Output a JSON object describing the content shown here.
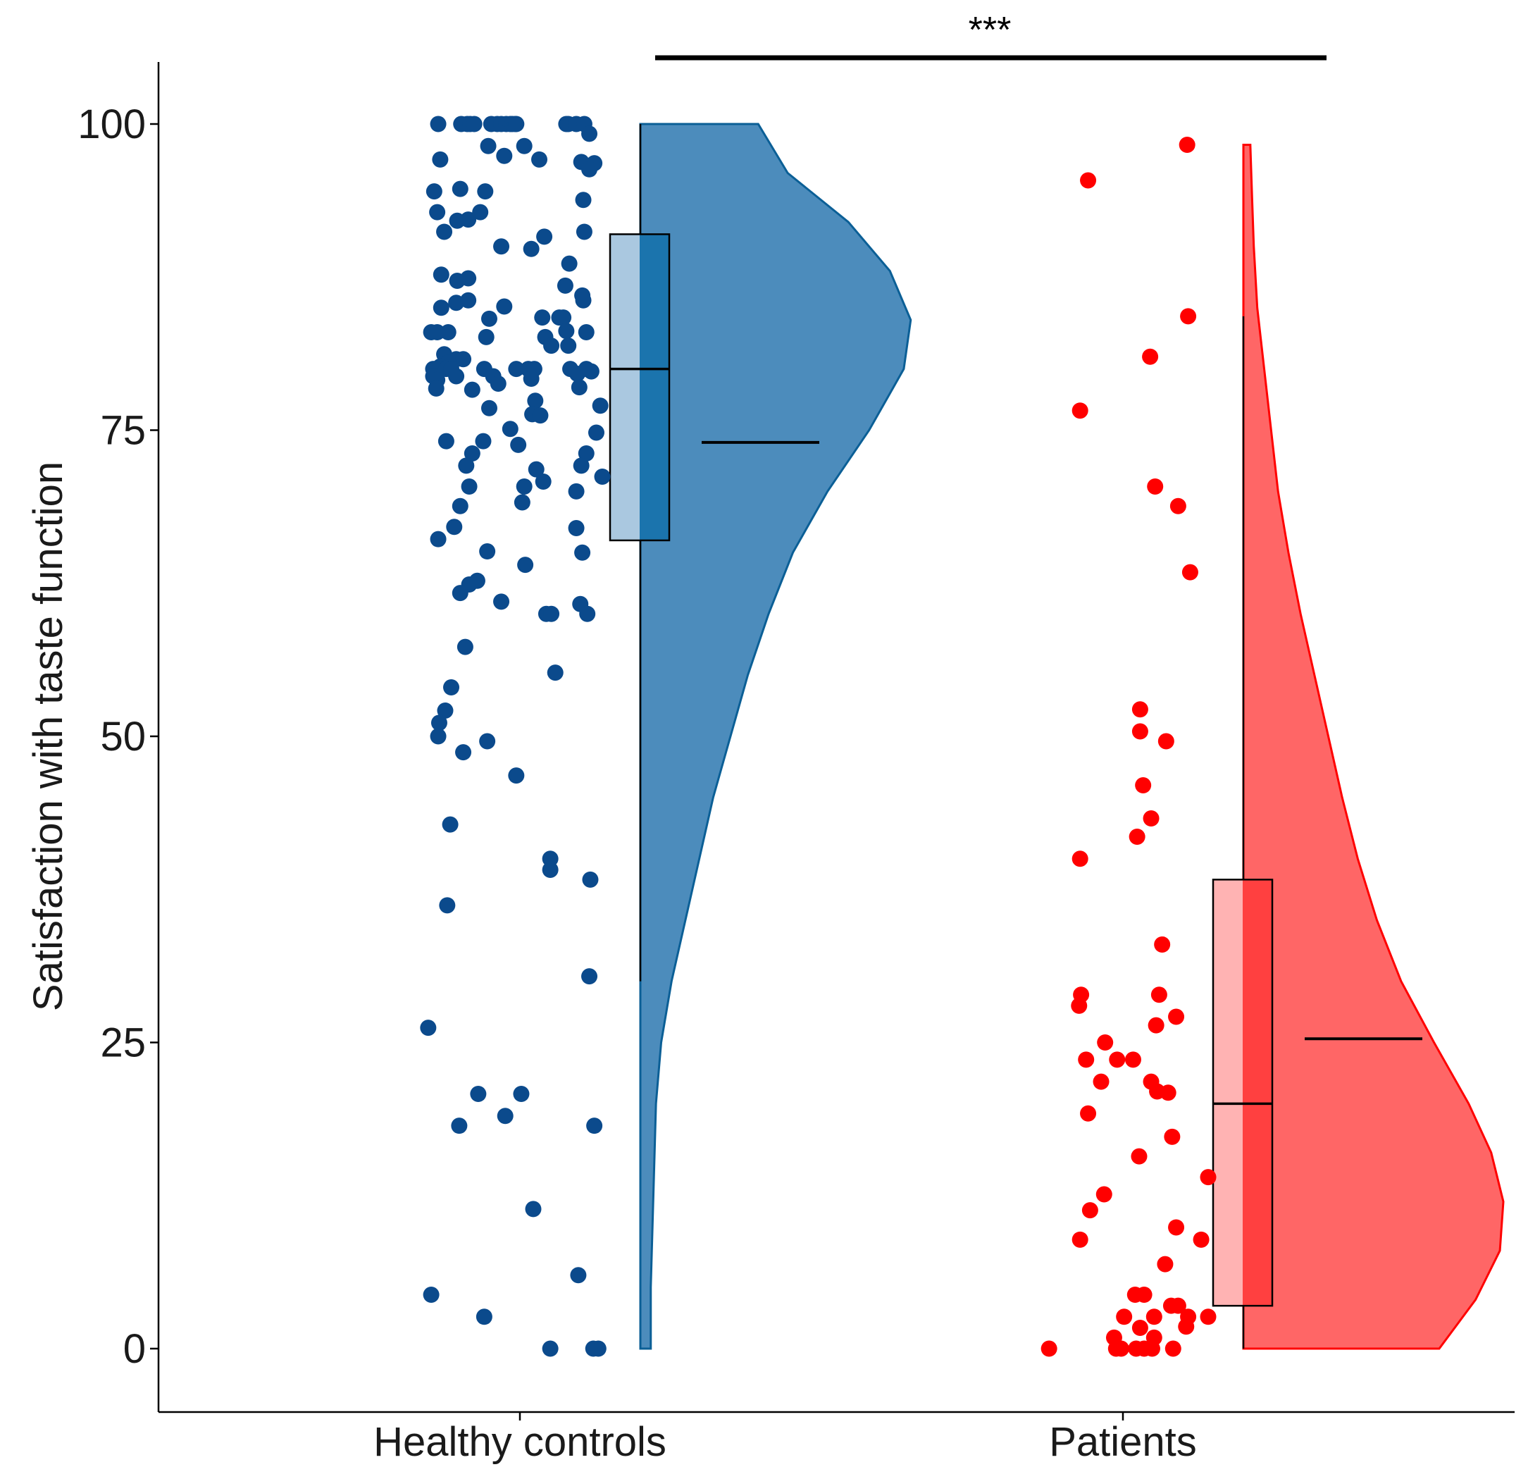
{
  "chart_data": {
    "type": "raincloud",
    "title": "",
    "xlabel": "",
    "ylabel": "Satisfaction with taste function",
    "ylim": [
      -5,
      105
    ],
    "yticks": [
      0,
      25,
      50,
      75,
      100
    ],
    "categories": [
      "Healthy controls",
      "Patients"
    ],
    "significance": {
      "label": "***",
      "between": [
        "Healthy controls",
        "Patients"
      ]
    },
    "colors": {
      "controls_point": "#0b4a8c",
      "controls_fill": "#1f6fab",
      "controls_box_left": "#aac8e0",
      "controls_box_right": "#1b74ad",
      "patients_point": "#ff0000",
      "patients_fill": "#ff3333",
      "patients_box_left": "#ffb3b3",
      "patients_box_right": "#ff4040"
    },
    "series": [
      {
        "name": "Healthy controls",
        "box": {
          "q1": 66,
          "median": 80,
          "q3": 91,
          "whisker_low": 30,
          "whisker_high": 100
        },
        "mean": 74,
        "density": [
          [
            0,
            0.06
          ],
          [
            5,
            0.06
          ],
          [
            10,
            0.07
          ],
          [
            15,
            0.08
          ],
          [
            20,
            0.09
          ],
          [
            25,
            0.12
          ],
          [
            30,
            0.18
          ],
          [
            35,
            0.26
          ],
          [
            40,
            0.34
          ],
          [
            45,
            0.42
          ],
          [
            50,
            0.52
          ],
          [
            55,
            0.62
          ],
          [
            60,
            0.74
          ],
          [
            65,
            0.88
          ],
          [
            70,
            1.08
          ],
          [
            75,
            1.32
          ],
          [
            80,
            1.52
          ],
          [
            84,
            1.56
          ],
          [
            88,
            1.44
          ],
          [
            92,
            1.2
          ],
          [
            96,
            0.85
          ],
          [
            100,
            0.68
          ]
        ],
        "points": [
          [
            0.12,
            100
          ],
          [
            0.35,
            100
          ],
          [
            0.41,
            100
          ],
          [
            0.44,
            100
          ],
          [
            0.48,
            100
          ],
          [
            0.65,
            100
          ],
          [
            0.71,
            100
          ],
          [
            0.75,
            100
          ],
          [
            0.8,
            100
          ],
          [
            0.84,
            100
          ],
          [
            0.86,
            100
          ],
          [
            0.89,
            100
          ],
          [
            0.9,
            100
          ],
          [
            1.4,
            100
          ],
          [
            1.42,
            100
          ],
          [
            1.5,
            100
          ],
          [
            1.58,
            100
          ],
          [
            1.63,
            99.2
          ],
          [
            0.62,
            98.2
          ],
          [
            0.98,
            98.2
          ],
          [
            0.78,
            97.4
          ],
          [
            0.14,
            97.1
          ],
          [
            1.13,
            97.1
          ],
          [
            1.55,
            96.9
          ],
          [
            1.68,
            96.8
          ],
          [
            1.63,
            96.3
          ],
          [
            0.34,
            94.7
          ],
          [
            0.59,
            94.5
          ],
          [
            0.08,
            94.5
          ],
          [
            1.57,
            93.8
          ],
          [
            0.11,
            92.8
          ],
          [
            0.54,
            92.8
          ],
          [
            0.42,
            92.2
          ],
          [
            0.31,
            92.1
          ],
          [
            0.18,
            91.2
          ],
          [
            1.58,
            91.2
          ],
          [
            0.75,
            90
          ],
          [
            1.18,
            90.8
          ],
          [
            1.05,
            89.8
          ],
          [
            1.43,
            88.6
          ],
          [
            0.42,
            87.4
          ],
          [
            0.15,
            87.7
          ],
          [
            0.31,
            87.2
          ],
          [
            1.39,
            86.8
          ],
          [
            1.56,
            86
          ],
          [
            1.57,
            85.6
          ],
          [
            0.3,
            85.4
          ],
          [
            0.42,
            85.6
          ],
          [
            0.15,
            85
          ],
          [
            0.78,
            85.1
          ],
          [
            1.16,
            84.2
          ],
          [
            1.33,
            84.2
          ],
          [
            1.37,
            84.2
          ],
          [
            0.22,
            83
          ],
          [
            0.05,
            83
          ],
          [
            0.11,
            83
          ],
          [
            0.63,
            84.1
          ],
          [
            0.6,
            82.6
          ],
          [
            1.4,
            83.1
          ],
          [
            1.6,
            83
          ],
          [
            1.19,
            82.6
          ],
          [
            1.25,
            81.9
          ],
          [
            1.42,
            81.9
          ],
          [
            0.18,
            81.2
          ],
          [
            0.3,
            80.8
          ],
          [
            0.37,
            80.8
          ],
          [
            0.22,
            80.5
          ],
          [
            0.14,
            80.2
          ],
          [
            0.07,
            80
          ],
          [
            0.12,
            80
          ],
          [
            0.2,
            80
          ],
          [
            0.25,
            80
          ],
          [
            0.58,
            80
          ],
          [
            0.9,
            80
          ],
          [
            1.02,
            80
          ],
          [
            1.08,
            80
          ],
          [
            1.44,
            80
          ],
          [
            1.6,
            80
          ],
          [
            1.65,
            79.8
          ],
          [
            1.51,
            79.6
          ],
          [
            0.07,
            79.4
          ],
          [
            0.11,
            79.1
          ],
          [
            0.3,
            79.4
          ],
          [
            0.67,
            79.4
          ],
          [
            0.72,
            78.8
          ],
          [
            1.05,
            79.2
          ],
          [
            1.53,
            78.5
          ],
          [
            0.1,
            78.4
          ],
          [
            0.46,
            78.3
          ],
          [
            1.09,
            77.4
          ],
          [
            0.63,
            76.8
          ],
          [
            1.06,
            76.3
          ],
          [
            1.14,
            76.2
          ],
          [
            1.74,
            77
          ],
          [
            0.84,
            75.1
          ],
          [
            1.7,
            74.8
          ],
          [
            0.2,
            74.1
          ],
          [
            0.57,
            74.1
          ],
          [
            0.92,
            73.8
          ],
          [
            1.6,
            73.1
          ],
          [
            0.46,
            73.1
          ],
          [
            0.4,
            72.1
          ],
          [
            1.55,
            72.1
          ],
          [
            1.1,
            71.8
          ],
          [
            1.76,
            71.2
          ],
          [
            1.17,
            70.8
          ],
          [
            0.43,
            70.4
          ],
          [
            0.98,
            70.4
          ],
          [
            1.5,
            70
          ],
          [
            0.34,
            68.8
          ],
          [
            0.96,
            69.1
          ],
          [
            0.28,
            67.1
          ],
          [
            0.12,
            66.1
          ],
          [
            1.5,
            67
          ],
          [
            1.56,
            65
          ],
          [
            0.61,
            65.1
          ],
          [
            0.99,
            64
          ],
          [
            0.43,
            62.4
          ],
          [
            0.51,
            62.7
          ],
          [
            0.34,
            61.7
          ],
          [
            0.75,
            61
          ],
          [
            1.54,
            60.8
          ],
          [
            1.2,
            60
          ],
          [
            1.25,
            60
          ],
          [
            1.61,
            60
          ],
          [
            0.39,
            57.3
          ],
          [
            1.29,
            55.2
          ],
          [
            0.25,
            54
          ],
          [
            0.19,
            52.1
          ],
          [
            0.13,
            51.1
          ],
          [
            0.12,
            50
          ],
          [
            0.37,
            48.7
          ],
          [
            0.61,
            49.6
          ],
          [
            0.9,
            46.8
          ],
          [
            0.24,
            42.8
          ],
          [
            1.24,
            40
          ],
          [
            1.24,
            39.1
          ],
          [
            1.64,
            38.3
          ],
          [
            0.21,
            36.2
          ],
          [
            1.63,
            30.4
          ],
          [
            0.02,
            26.2
          ],
          [
            0.52,
            20.8
          ],
          [
            0.95,
            20.8
          ],
          [
            0.79,
            19
          ],
          [
            0.33,
            18.2
          ],
          [
            1.68,
            18.2
          ],
          [
            1.07,
            11.4
          ],
          [
            1.52,
            6
          ],
          [
            0.05,
            4.4
          ],
          [
            0.58,
            2.6
          ],
          [
            1.24,
            0
          ],
          [
            1.67,
            0
          ],
          [
            1.72,
            0
          ]
        ]
      },
      {
        "name": "Patients",
        "box": {
          "q1": 3.5,
          "median": 20,
          "q3": 38.3,
          "whisker_low": 0,
          "whisker_high": 84.3
        },
        "mean": 25.3,
        "density": [
          [
            0,
            1.13
          ],
          [
            4,
            1.34
          ],
          [
            8,
            1.48
          ],
          [
            12,
            1.5
          ],
          [
            16,
            1.43
          ],
          [
            20,
            1.3
          ],
          [
            25,
            1.1
          ],
          [
            30,
            0.91
          ],
          [
            35,
            0.77
          ],
          [
            40,
            0.66
          ],
          [
            45,
            0.57
          ],
          [
            50,
            0.49
          ],
          [
            55,
            0.41
          ],
          [
            60,
            0.33
          ],
          [
            65,
            0.26
          ],
          [
            70,
            0.2
          ],
          [
            75,
            0.16
          ],
          [
            80,
            0.12
          ],
          [
            85,
            0.08
          ],
          [
            90,
            0.06
          ],
          [
            94,
            0.05
          ],
          [
            98.3,
            0.04
          ]
        ],
        "points": [
          [
            1.55,
            98.3
          ],
          [
            0.56,
            95.4
          ],
          [
            1.56,
            84.3
          ],
          [
            1.18,
            81
          ],
          [
            0.48,
            76.6
          ],
          [
            1.23,
            70.4
          ],
          [
            1.46,
            68.8
          ],
          [
            1.58,
            63.4
          ],
          [
            1.08,
            52.2
          ],
          [
            1.08,
            50.4
          ],
          [
            1.34,
            49.6
          ],
          [
            1.11,
            46
          ],
          [
            1.19,
            43.3
          ],
          [
            1.05,
            41.8
          ],
          [
            0.48,
            40
          ],
          [
            1.3,
            33
          ],
          [
            0.49,
            28.9
          ],
          [
            0.47,
            28
          ],
          [
            1.27,
            28.9
          ],
          [
            1.24,
            26.4
          ],
          [
            1.44,
            27.1
          ],
          [
            0.73,
            25
          ],
          [
            0.85,
            23.6
          ],
          [
            0.54,
            23.6
          ],
          [
            1.01,
            23.6
          ],
          [
            0.69,
            21.8
          ],
          [
            1.19,
            21.8
          ],
          [
            1.25,
            21
          ],
          [
            1.36,
            20.9
          ],
          [
            0.56,
            19.2
          ],
          [
            1.4,
            17.3
          ],
          [
            1.07,
            15.7
          ],
          [
            1.76,
            14
          ],
          [
            0.72,
            12.6
          ],
          [
            0.58,
            11.3
          ],
          [
            1.44,
            9.9
          ],
          [
            0.48,
            8.9
          ],
          [
            1.69,
            8.9
          ],
          [
            1.33,
            6.9
          ],
          [
            1.03,
            4.4
          ],
          [
            1.12,
            4.4
          ],
          [
            1.39,
            3.5
          ],
          [
            1.46,
            3.5
          ],
          [
            0.92,
            2.6
          ],
          [
            1.22,
            2.6
          ],
          [
            1.56,
            2.6
          ],
          [
            1.76,
            2.6
          ],
          [
            0.82,
            0.9
          ],
          [
            1.08,
            1.7
          ],
          [
            1.54,
            1.8
          ],
          [
            1.22,
            0.9
          ],
          [
            0.17,
            0
          ],
          [
            0.84,
            0
          ],
          [
            0.89,
            0
          ],
          [
            1.04,
            0
          ],
          [
            1.12,
            0
          ],
          [
            1.2,
            0
          ],
          [
            1.41,
            0
          ]
        ]
      }
    ]
  }
}
